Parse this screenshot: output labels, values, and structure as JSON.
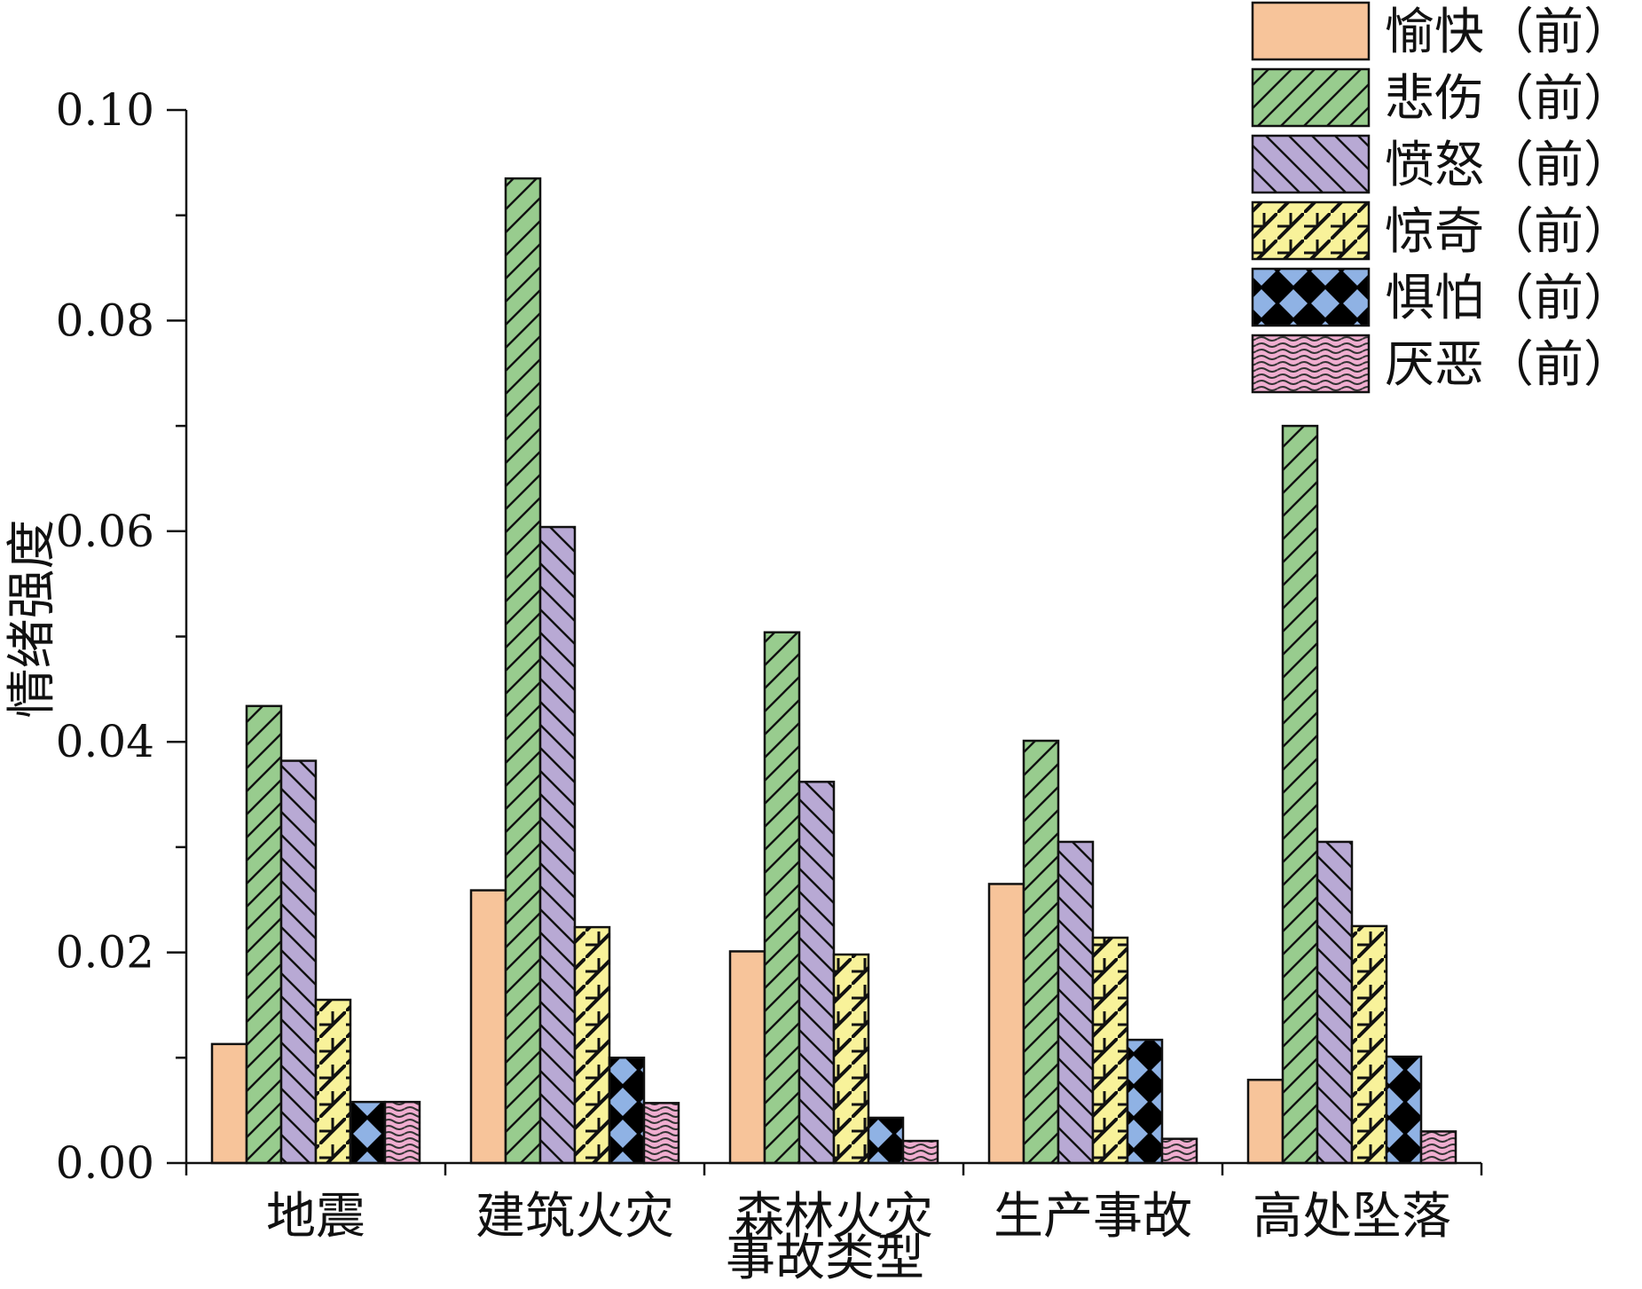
{
  "chart_data": {
    "type": "bar",
    "title": "",
    "xlabel": "事故类型",
    "ylabel": "情绪强度",
    "ylim": [
      0,
      0.1
    ],
    "yticks": [
      "0.00",
      "0.02",
      "0.04",
      "0.06",
      "0.08",
      "0.10"
    ],
    "grid": false,
    "legend_position": "top-right",
    "categories": [
      "地震",
      "建筑火灾",
      "森林火灾",
      "生产事故",
      "高处坠落"
    ],
    "series": [
      {
        "name": "愉快（前）",
        "color": "#f7c49a",
        "pattern": "none",
        "values": [
          0.0113,
          0.0259,
          0.0201,
          0.0265,
          0.0079
        ]
      },
      {
        "name": "悲伤（前）",
        "color": "#98cc8e",
        "pattern": "diag-forward",
        "values": [
          0.0434,
          0.0935,
          0.0504,
          0.0401,
          0.07
        ]
      },
      {
        "name": "愤怒（前）",
        "color": "#b8a9d4",
        "pattern": "diag-backward",
        "values": [
          0.0382,
          0.0604,
          0.0362,
          0.0305,
          0.0305
        ]
      },
      {
        "name": "惊奇（前）",
        "color": "#f8f29a",
        "pattern": "zigzag",
        "values": [
          0.0155,
          0.0224,
          0.0198,
          0.0214,
          0.0225
        ]
      },
      {
        "name": "惧怕（前）",
        "color": "#8fb2e4",
        "pattern": "dots-diamond",
        "values": [
          0.0058,
          0.01,
          0.0043,
          0.0117,
          0.0101
        ]
      },
      {
        "name": "厌恶（前）",
        "color": "#f0aed0",
        "pattern": "waves",
        "values": [
          0.0058,
          0.0057,
          0.0021,
          0.0023,
          0.003
        ]
      }
    ]
  }
}
